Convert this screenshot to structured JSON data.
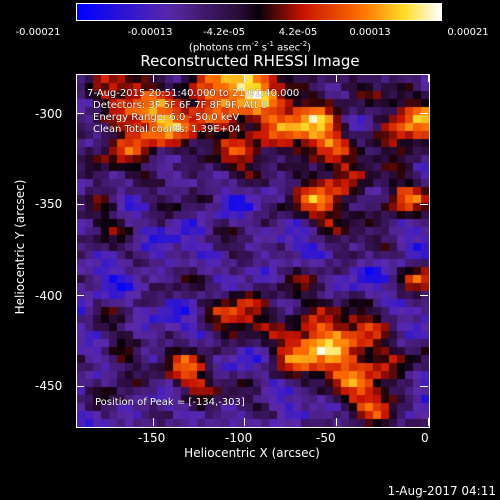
{
  "colorbar": {
    "ticks": [
      "-0.00021",
      "-0.00013",
      "-4.2e-05",
      "4.2e-05",
      "0.00013",
      "0.00021"
    ],
    "units_prefix": "(photons cm",
    "units_exp1": "-2",
    "units_mid1": " s",
    "units_exp2": "-1",
    "units_mid2": " asec",
    "units_exp3": "-2",
    "units_suffix": ")"
  },
  "title": "Reconstructed RHESSI Image",
  "annotations": {
    "time": "7-Aug-2015 20:51:40.000 to 21:01:40.000",
    "detectors": "Detectors: 3F 5F 6F 7F 8F 9F, Att 0",
    "energy": "Energy Range: 6.0 - 50.0 keV",
    "method": "Clean    Total counts: 1.39E+04",
    "peak": "Position of Peak = [-134,-303]"
  },
  "axes": {
    "xlabel": "Heliocentric X (arcsec)",
    "ylabel": "Heliocentric Y (arcsec)",
    "xticks": [
      -150,
      -100,
      -50,
      0
    ],
    "yticks": [
      -300,
      -350,
      -400,
      -450
    ],
    "xlim": [
      -193,
      0
    ],
    "ylim": [
      -470,
      -277
    ]
  },
  "footer": "1-Aug-2017 04:11",
  "chart_data": {
    "type": "heatmap",
    "title": "Reconstructed RHESSI Image",
    "xlabel": "Heliocentric X (arcsec)",
    "ylabel": "Heliocentric Y (arcsec)",
    "xlim": [
      -193,
      0
    ],
    "ylim": [
      -470,
      -277
    ],
    "peak": [
      -134,
      -303
    ],
    "colorbar_range": [
      -0.00021,
      0.00021
    ],
    "colormap": "blue-purple-red-yellow-white"
  }
}
